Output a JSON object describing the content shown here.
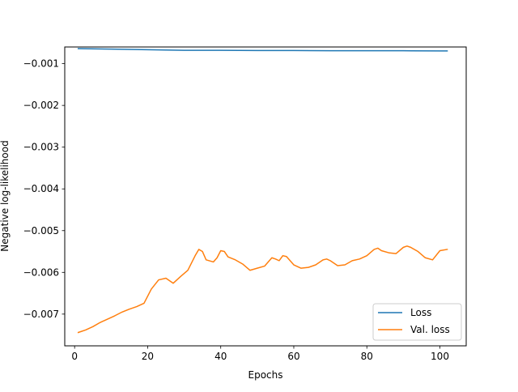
{
  "chart_data": {
    "type": "line",
    "title": "",
    "xlabel": "Epochs",
    "ylabel": "Negative log-likelihood",
    "xlim": [
      -2.7,
      107.2
    ],
    "ylim": [
      -0.00776,
      -0.0006
    ],
    "xticks": [
      0,
      20,
      40,
      60,
      80,
      100
    ],
    "yticks": [
      -0.001,
      -0.002,
      -0.003,
      -0.004,
      -0.005,
      -0.006,
      -0.007
    ],
    "ytick_labels": [
      "−0.001",
      "−0.002",
      "−0.003",
      "−0.004",
      "−0.005",
      "−0.006",
      "−0.007"
    ],
    "grid": false,
    "legend_position": "lower-right",
    "series": [
      {
        "name": "Loss",
        "color": "#1f77b4",
        "x": [
          1,
          10,
          20,
          30,
          40,
          50,
          60,
          70,
          80,
          90,
          100,
          102
        ],
        "values": [
          -0.00064,
          -0.00065,
          -0.000665,
          -0.00068,
          -0.00068,
          -0.000685,
          -0.000685,
          -0.00069,
          -0.00069,
          -0.00069,
          -0.000695,
          -0.000695
        ]
      },
      {
        "name": "Val. loss",
        "color": "#ff7f0e",
        "x": [
          1,
          3,
          5,
          7,
          9,
          11,
          13,
          15,
          17,
          19,
          21,
          23,
          25,
          27,
          29,
          31,
          33,
          34,
          35,
          36,
          38,
          39,
          40,
          41,
          42,
          44,
          46,
          48,
          50,
          52,
          54,
          55,
          56,
          57,
          58,
          59,
          60,
          62,
          64,
          66,
          68,
          69,
          70,
          72,
          74,
          76,
          78,
          80,
          82,
          83,
          84,
          86,
          88,
          90,
          91,
          92,
          94,
          96,
          98,
          100,
          102
        ],
        "values": [
          -0.00744,
          -0.00738,
          -0.0073,
          -0.0072,
          -0.00712,
          -0.00704,
          -0.00695,
          -0.00688,
          -0.00682,
          -0.00674,
          -0.0064,
          -0.00618,
          -0.00614,
          -0.00626,
          -0.0061,
          -0.00595,
          -0.0056,
          -0.00545,
          -0.0055,
          -0.0057,
          -0.00575,
          -0.00565,
          -0.00548,
          -0.0055,
          -0.00563,
          -0.0057,
          -0.0058,
          -0.00595,
          -0.0059,
          -0.00585,
          -0.00565,
          -0.00568,
          -0.00572,
          -0.0056,
          -0.00562,
          -0.00572,
          -0.00582,
          -0.0059,
          -0.00588,
          -0.00582,
          -0.0057,
          -0.00568,
          -0.00572,
          -0.00584,
          -0.00582,
          -0.00572,
          -0.00568,
          -0.0056,
          -0.00545,
          -0.00542,
          -0.00548,
          -0.00553,
          -0.00555,
          -0.0054,
          -0.00537,
          -0.0054,
          -0.0055,
          -0.00565,
          -0.0057,
          -0.00548,
          -0.00545
        ]
      }
    ]
  }
}
